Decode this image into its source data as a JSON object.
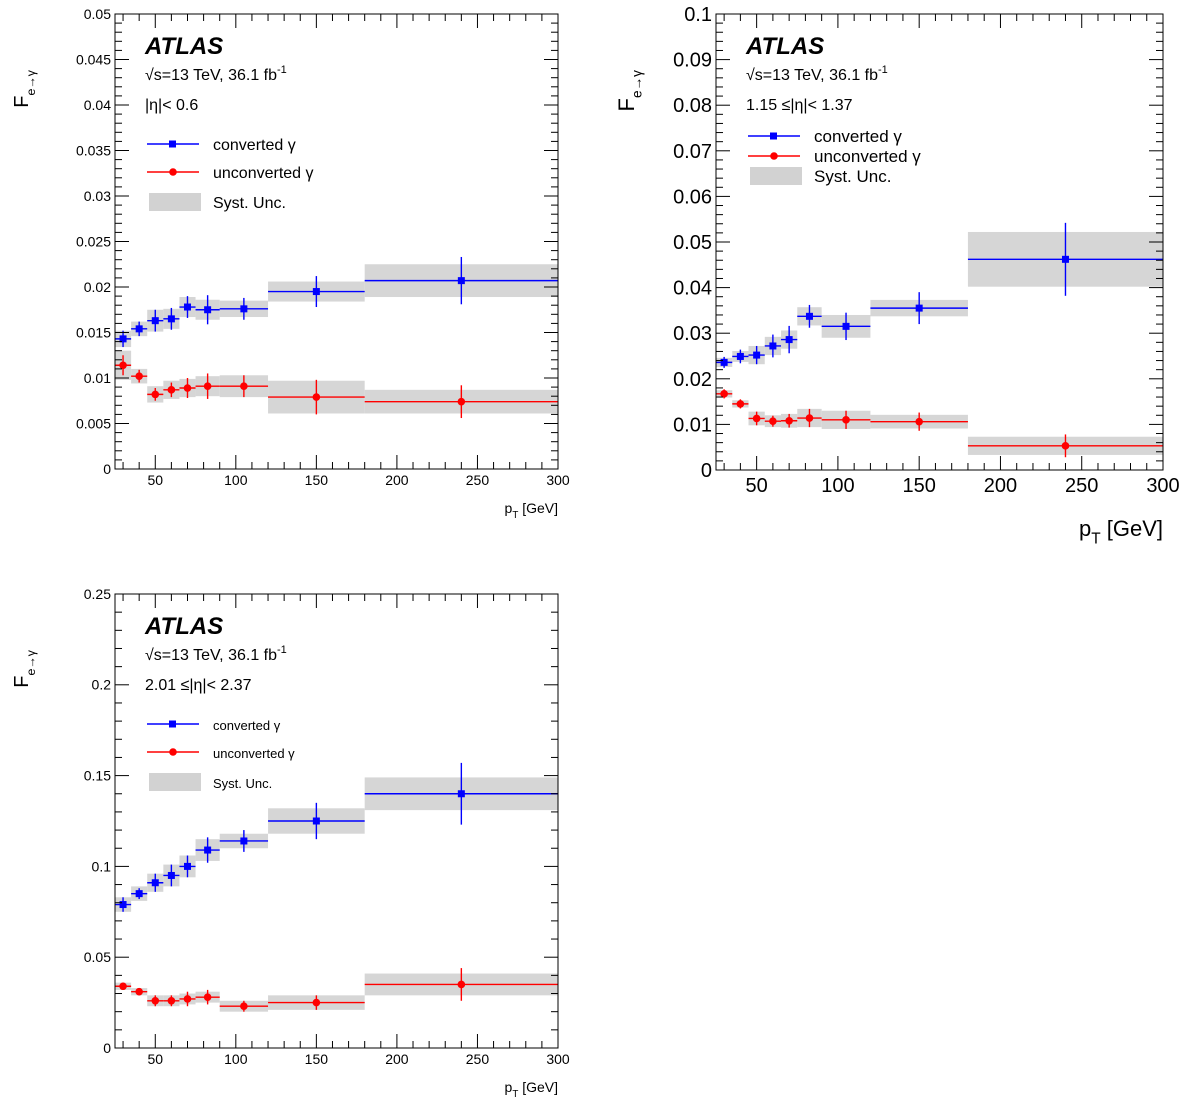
{
  "chart_data": [
    {
      "type": "scatter",
      "title": "",
      "xlabel": "p",
      "xlabel_sub": "T",
      "xlabel_unit": " [GeV]",
      "ylabel": "F",
      "ylabel_sub": "e→γ",
      "xlim": [
        25,
        300
      ],
      "ylim": [
        0,
        0.05
      ],
      "x_ticks": [
        50,
        100,
        150,
        200,
        250,
        300
      ],
      "y_ticks": [
        0,
        0.005,
        0.01,
        0.015,
        0.02,
        0.025,
        0.03,
        0.035,
        0.04,
        0.045,
        0.05
      ],
      "y_tick_labels": [
        "0",
        "0.005",
        "0.01",
        "0.015",
        "0.02",
        "0.025",
        "0.03",
        "0.035",
        "0.04",
        "0.045",
        "0.05"
      ],
      "grid": false,
      "atlas_label": "ATLAS",
      "energy_label": {
        "prefix": "√",
        "main": "s=13 TeV, 36.1 fb",
        "sup": "-1"
      },
      "region_label": "|η|< 0.6",
      "legend_position": "top-left",
      "legend": {
        "converted": "converted  γ",
        "unconverted": "unconverted  γ",
        "syst": "Syst. Unc."
      },
      "series": [
        {
          "name": "converted  γ",
          "color": "#0000ff",
          "marker": "square",
          "bins": [
            [
              25,
              35
            ],
            [
              35,
              45
            ],
            [
              45,
              55
            ],
            [
              55,
              65
            ],
            [
              65,
              75
            ],
            [
              75,
              90
            ],
            [
              90,
              120
            ],
            [
              120,
              180
            ],
            [
              180,
              300
            ]
          ],
          "x": [
            30,
            40,
            50,
            60,
            70,
            82.5,
            105,
            150,
            240
          ],
          "y": [
            0.0143,
            0.0154,
            0.0163,
            0.0165,
            0.0178,
            0.0175,
            0.0176,
            0.0195,
            0.0207
          ],
          "stat_err": [
            0.0009,
            0.0008,
            0.0012,
            0.0012,
            0.0012,
            0.0016,
            0.0012,
            0.0017,
            0.0026
          ],
          "syst_err": [
            0.0009,
            0.0008,
            0.0012,
            0.0011,
            0.0011,
            0.0011,
            0.0009,
            0.0011,
            0.0018
          ]
        },
        {
          "name": "unconverted  γ",
          "color": "#ff0000",
          "marker": "circle",
          "bins": [
            [
              25,
              35
            ],
            [
              35,
              45
            ],
            [
              45,
              55
            ],
            [
              55,
              65
            ],
            [
              65,
              75
            ],
            [
              75,
              90
            ],
            [
              90,
              120
            ],
            [
              120,
              180
            ],
            [
              180,
              300
            ]
          ],
          "x": [
            30,
            40,
            50,
            60,
            70,
            82.5,
            105,
            150,
            240
          ],
          "y": [
            0.0114,
            0.0102,
            0.0082,
            0.0087,
            0.0089,
            0.0091,
            0.0091,
            0.0079,
            0.0074
          ],
          "stat_err": [
            0.0011,
            0.0007,
            0.0007,
            0.0008,
            0.0011,
            0.0014,
            0.0012,
            0.0019,
            0.0018
          ],
          "syst_err": [
            0.0016,
            0.0008,
            0.0009,
            0.001,
            0.001,
            0.0011,
            0.0012,
            0.0018,
            0.0013
          ]
        }
      ]
    },
    {
      "type": "scatter",
      "title": "",
      "xlabel": "p",
      "xlabel_sub": "T",
      "xlabel_unit": " [GeV]",
      "ylabel": "F",
      "ylabel_sub": "e→γ",
      "xlim": [
        25,
        300
      ],
      "ylim": [
        0,
        0.1
      ],
      "x_ticks": [
        50,
        100,
        150,
        200,
        250,
        300
      ],
      "y_ticks": [
        0,
        0.01,
        0.02,
        0.03,
        0.04,
        0.05,
        0.06,
        0.07,
        0.08,
        0.09,
        0.1
      ],
      "y_tick_labels": [
        "0",
        "0.01",
        "0.02",
        "0.03",
        "0.04",
        "0.05",
        "0.06",
        "0.07",
        "0.08",
        "0.09",
        "0.1"
      ],
      "grid": false,
      "atlas_label": "ATLAS",
      "energy_label": {
        "prefix": "√",
        "main": "s=13 TeV, 36.1 fb",
        "sup": "-1"
      },
      "region_label": "1.15 ≤|η|< 1.37",
      "legend_position": "top-left",
      "legend": {
        "converted": "converted  γ",
        "unconverted": "unconverted  γ",
        "syst": "Syst. Unc."
      },
      "series": [
        {
          "name": "converted  γ",
          "color": "#0000ff",
          "marker": "square",
          "bins": [
            [
              25,
              35
            ],
            [
              35,
              45
            ],
            [
              45,
              55
            ],
            [
              55,
              65
            ],
            [
              65,
              75
            ],
            [
              75,
              90
            ],
            [
              90,
              120
            ],
            [
              120,
              180
            ],
            [
              180,
              300
            ]
          ],
          "x": [
            30,
            40,
            50,
            60,
            70,
            82.5,
            105,
            150,
            240
          ],
          "y": [
            0.0236,
            0.0249,
            0.0252,
            0.0272,
            0.0286,
            0.0337,
            0.0315,
            0.0355,
            0.0462
          ],
          "stat_err": [
            0.0012,
            0.0015,
            0.002,
            0.0025,
            0.003,
            0.0025,
            0.003,
            0.0035,
            0.008
          ],
          "syst_err": [
            0.001,
            0.0012,
            0.002,
            0.002,
            0.002,
            0.002,
            0.0025,
            0.0018,
            0.006
          ]
        },
        {
          "name": "unconverted  γ",
          "color": "#ff0000",
          "marker": "circle",
          "bins": [
            [
              25,
              35
            ],
            [
              35,
              45
            ],
            [
              45,
              55
            ],
            [
              55,
              65
            ],
            [
              65,
              75
            ],
            [
              75,
              90
            ],
            [
              90,
              120
            ],
            [
              120,
              180
            ],
            [
              180,
              300
            ]
          ],
          "x": [
            30,
            40,
            50,
            60,
            70,
            82.5,
            105,
            150,
            240
          ],
          "y": [
            0.0167,
            0.0145,
            0.0113,
            0.0107,
            0.0108,
            0.0114,
            0.011,
            0.0106,
            0.0053
          ],
          "stat_err": [
            0.001,
            0.001,
            0.0015,
            0.0012,
            0.0015,
            0.002,
            0.002,
            0.002,
            0.0025
          ],
          "syst_err": [
            0.0008,
            0.0008,
            0.0015,
            0.0013,
            0.0015,
            0.002,
            0.002,
            0.0015,
            0.002
          ]
        }
      ]
    },
    {
      "type": "scatter",
      "title": "",
      "xlabel": "p",
      "xlabel_sub": "T",
      "xlabel_unit": " [GeV]",
      "ylabel": "F",
      "ylabel_sub": "e→γ",
      "xlim": [
        25,
        300
      ],
      "ylim": [
        0,
        0.25
      ],
      "x_ticks": [
        50,
        100,
        150,
        200,
        250,
        300
      ],
      "y_ticks": [
        0,
        0.05,
        0.1,
        0.15,
        0.2,
        0.25
      ],
      "y_tick_labels": [
        "0",
        "0.05",
        "0.1",
        "0.15",
        "0.2",
        "0.25"
      ],
      "grid": false,
      "atlas_label": "ATLAS",
      "energy_label": {
        "prefix": "√",
        "main": "s=13 TeV, 36.1 fb",
        "sup": "-1"
      },
      "region_label": "2.01 ≤|η|< 2.37",
      "legend_position": "top-left",
      "legend": {
        "converted": "converted  γ",
        "unconverted": "unconverted  γ",
        "syst": "Syst. Unc."
      },
      "series": [
        {
          "name": "converted  γ",
          "color": "#0000ff",
          "marker": "square",
          "bins": [
            [
              25,
              35
            ],
            [
              35,
              45
            ],
            [
              45,
              55
            ],
            [
              55,
              65
            ],
            [
              65,
              75
            ],
            [
              75,
              90
            ],
            [
              90,
              120
            ],
            [
              120,
              180
            ],
            [
              180,
              300
            ]
          ],
          "x": [
            30,
            40,
            50,
            60,
            70,
            82.5,
            105,
            150,
            240
          ],
          "y": [
            0.079,
            0.085,
            0.091,
            0.095,
            0.1,
            0.109,
            0.114,
            0.125,
            0.14
          ],
          "stat_err": [
            0.004,
            0.003,
            0.005,
            0.006,
            0.006,
            0.007,
            0.006,
            0.01,
            0.017
          ],
          "syst_err": [
            0.004,
            0.004,
            0.005,
            0.006,
            0.006,
            0.006,
            0.004,
            0.007,
            0.009
          ]
        },
        {
          "name": "unconverted  γ",
          "color": "#ff0000",
          "marker": "circle",
          "bins": [
            [
              25,
              35
            ],
            [
              35,
              45
            ],
            [
              45,
              55
            ],
            [
              55,
              65
            ],
            [
              65,
              75
            ],
            [
              75,
              90
            ],
            [
              90,
              120
            ],
            [
              120,
              180
            ],
            [
              180,
              300
            ]
          ],
          "x": [
            30,
            40,
            50,
            60,
            70,
            82.5,
            105,
            150,
            240
          ],
          "y": [
            0.034,
            0.031,
            0.026,
            0.026,
            0.027,
            0.028,
            0.023,
            0.025,
            0.035
          ],
          "stat_err": [
            0.002,
            0.002,
            0.003,
            0.003,
            0.004,
            0.004,
            0.003,
            0.004,
            0.009
          ],
          "syst_err": [
            0.002,
            0.002,
            0.003,
            0.003,
            0.003,
            0.003,
            0.003,
            0.004,
            0.006
          ]
        }
      ]
    }
  ]
}
